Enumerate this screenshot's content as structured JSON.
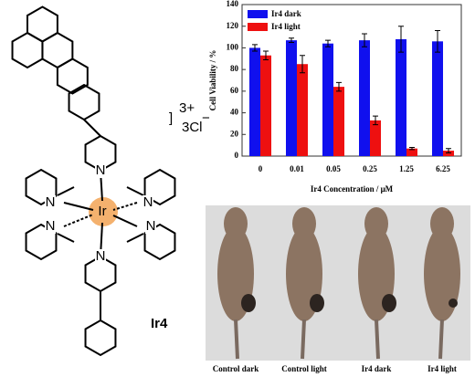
{
  "chart_data": {
    "type": "bar",
    "xlabel": "Ir4 Concentration / μM",
    "ylabel": "Cell Viability / %",
    "categories": [
      "0",
      "0.01",
      "0.05",
      "0.25",
      "1.25",
      "6.25"
    ],
    "series": [
      {
        "name": "Ir4 dark",
        "color": "#1010ee",
        "values": [
          100,
          107,
          104,
          107,
          108,
          106
        ],
        "errors": [
          3,
          2,
          3,
          6,
          12,
          10
        ]
      },
      {
        "name": "Ir4 light",
        "color": "#ee1010",
        "values": [
          93,
          85,
          64,
          33,
          7,
          5
        ],
        "errors": [
          4,
          8,
          4,
          4,
          1,
          2
        ]
      }
    ],
    "ylim": [
      0,
      140
    ],
    "yticks": [
      0,
      20,
      40,
      60,
      80,
      100,
      120,
      140
    ],
    "legend": "upper left"
  },
  "structure": {
    "metal": "Ir",
    "atoms": [
      "N",
      "N",
      "N",
      "N",
      "N",
      "N"
    ],
    "charge": "3+",
    "counter_ion": "3Cl",
    "counter_charge": "−",
    "name": "Ir4"
  },
  "photo": {
    "labels": [
      "Control dark",
      "Control light",
      "Ir4 dark",
      "Ir4 light"
    ]
  }
}
